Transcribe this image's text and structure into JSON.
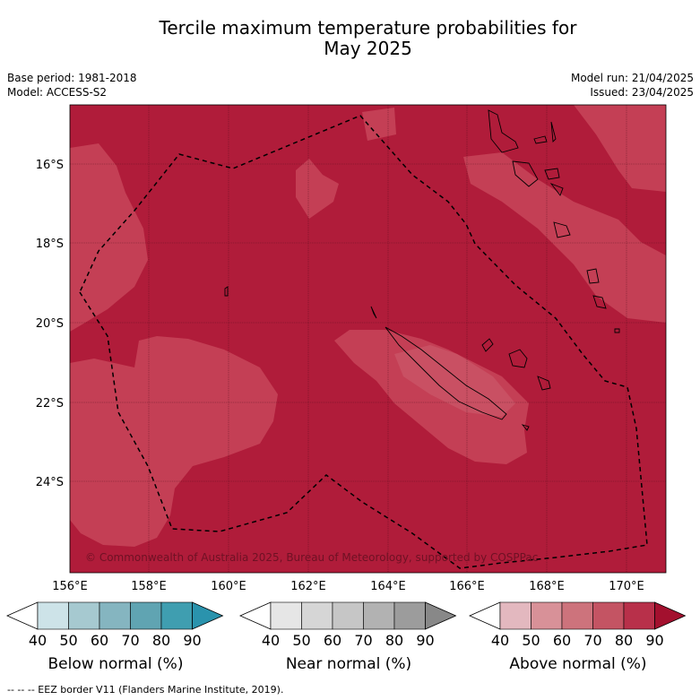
{
  "title_line1": "Tercile maximum temperature probabilities for",
  "title_line2": "May 2025",
  "base_period": "Base period: 1981-2018",
  "model": "Model: ACCESS-S2",
  "model_run": "Model run: 21/04/2025",
  "issued": "Issued: 23/04/2025",
  "map": {
    "lon_ticks": [
      "156°E",
      "158°E",
      "160°E",
      "162°E",
      "164°E",
      "166°E",
      "168°E",
      "170°E"
    ],
    "lat_ticks": [
      "16°S",
      "18°S",
      "20°S",
      "22°S",
      "24°S"
    ],
    "copyright": "© Commonwealth of Australia 2025, Bureau of Meteorology, supported by COSPPac",
    "colors": {
      "above_80_90": "#b01c3a",
      "above_70_80": "#c43f55",
      "eez_line": "#000000"
    }
  },
  "colorbars": [
    {
      "label": "Below normal (%)",
      "ticks": [
        "40",
        "50",
        "60",
        "70",
        "80",
        "90"
      ],
      "colors": [
        "#ffffff",
        "#cde3e8",
        "#a6c9d0",
        "#85b5c0",
        "#60a4b2",
        "#3f9eb0",
        "#2a93ad"
      ]
    },
    {
      "label": "Near normal (%)",
      "ticks": [
        "40",
        "50",
        "60",
        "70",
        "80",
        "90"
      ],
      "colors": [
        "#ffffff",
        "#e6e6e6",
        "#d6d6d6",
        "#c6c6c6",
        "#b2b2b2",
        "#9c9c9c",
        "#888888"
      ]
    },
    {
      "label": "Above normal (%)",
      "ticks": [
        "40",
        "50",
        "60",
        "70",
        "80",
        "90"
      ],
      "colors": [
        "#ffffff",
        "#e3b8bf",
        "#d89198",
        "#cd737c",
        "#c45463",
        "#b8304a",
        "#a3102e"
      ]
    }
  ],
  "footer": "-- -- -- EEZ border V11 (Flanders Marine Institute, 2019)."
}
